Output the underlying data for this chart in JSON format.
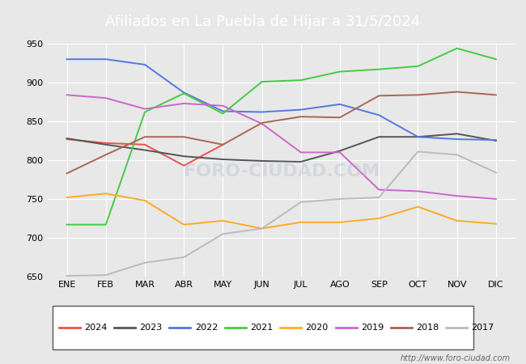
{
  "title": "Afiliados en La Puebla de Híjar a 31/5/2024",
  "ylim": [
    650,
    950
  ],
  "yticks": [
    650,
    700,
    750,
    800,
    850,
    900,
    950
  ],
  "months": [
    "ENE",
    "FEB",
    "MAR",
    "ABR",
    "MAY",
    "JUN",
    "JUL",
    "AGO",
    "SEP",
    "OCT",
    "NOV",
    "DIC"
  ],
  "series": {
    "2024": {
      "color": "#e8534a",
      "data": [
        827,
        822,
        820,
        793,
        820,
        null,
        null,
        null,
        null,
        null,
        null,
        null
      ]
    },
    "2023": {
      "color": "#555555",
      "data": [
        828,
        820,
        813,
        805,
        801,
        799,
        798,
        812,
        830,
        830,
        834,
        825
      ]
    },
    "2022": {
      "color": "#5577dd",
      "data": [
        930,
        930,
        923,
        887,
        863,
        862,
        865,
        872,
        858,
        830,
        827,
        826
      ]
    },
    "2021": {
      "color": "#44cc44",
      "data": [
        717,
        717,
        862,
        886,
        860,
        901,
        903,
        914,
        917,
        921,
        944,
        930
      ]
    },
    "2020": {
      "color": "#ffaa22",
      "data": [
        752,
        757,
        748,
        717,
        722,
        712,
        720,
        720,
        725,
        740,
        722,
        718
      ]
    },
    "2019": {
      "color": "#cc66cc",
      "data": [
        884,
        880,
        866,
        873,
        870,
        847,
        810,
        810,
        762,
        760,
        754,
        750
      ]
    },
    "2018": {
      "color": "#aa6655",
      "data": [
        783,
        807,
        830,
        830,
        820,
        848,
        856,
        855,
        883,
        884,
        888,
        884
      ]
    },
    "2017": {
      "color": "#bbbbbb",
      "data": [
        651,
        652,
        668,
        675,
        705,
        712,
        746,
        750,
        752,
        811,
        807,
        784
      ]
    }
  },
  "legend_order": [
    "2024",
    "2023",
    "2022",
    "2021",
    "2020",
    "2019",
    "2018",
    "2017"
  ],
  "plot_bg_color": "#e8e8e8",
  "title_bg_color": "#4477bb",
  "title_text_color": "white",
  "title_fontsize": 13,
  "grid_color": "white",
  "footer_url": "http://www.foro-ciudad.com",
  "watermark_text": "FORO-CIUDAD.COM",
  "watermark_color": "#b0b8cc",
  "watermark_alpha": 0.35
}
